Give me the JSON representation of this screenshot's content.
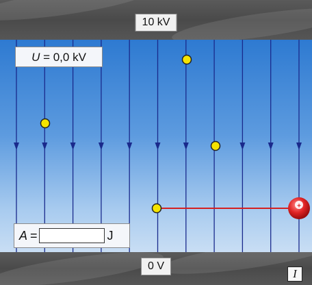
{
  "top_plate": {
    "voltage_label": "10 kV"
  },
  "bottom_plate": {
    "voltage_label": "0 V"
  },
  "voltage_readout": {
    "symbol": "U",
    "text": "= 0,0 kV"
  },
  "work_panel": {
    "symbol": "A",
    "equals": "=",
    "value": "",
    "unit": "J"
  },
  "info_button": {
    "label": "I"
  },
  "field_lines": {
    "count": 11,
    "direction": "downward",
    "color": "#1a2a8c"
  },
  "colors": {
    "field_top": "#2e7ad1",
    "field_bottom": "#c9def4",
    "plate": "#4f4f4f",
    "test_point": "#f5e400",
    "charge": "#e02424",
    "path_line": "#d42020"
  },
  "charge": {
    "sign": "+"
  }
}
